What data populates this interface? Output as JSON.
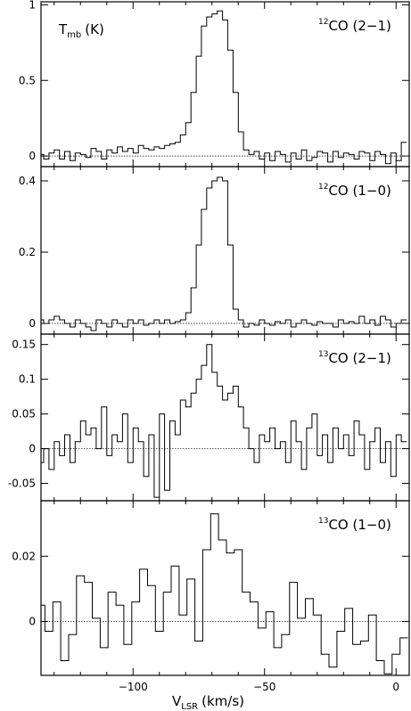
{
  "chart_data": [
    {
      "type": "line",
      "panel": "12CO (2-1)",
      "title_sup": "12",
      "title_main": "CO (2−1)",
      "ylabel_main": "T",
      "ylabel_sub": "mb",
      "ylabel_unit": "(K)",
      "xlim": [
        -135,
        5
      ],
      "ylim": [
        -0.07,
        1.02
      ],
      "yticks": [
        0,
        0.5,
        1
      ],
      "yticklabels": [
        "0",
        "0.5",
        "1"
      ],
      "x": [
        -135,
        -133,
        -131,
        -129,
        -127,
        -125,
        -123,
        -121,
        -119,
        -117,
        -115,
        -113,
        -111,
        -109,
        -107,
        -105,
        -103,
        -101,
        -99,
        -97,
        -95,
        -93,
        -91,
        -89,
        -87,
        -85,
        -83,
        -81,
        -79,
        -77,
        -75,
        -73,
        -71,
        -69,
        -67,
        -65,
        -63,
        -61,
        -59,
        -57,
        -55,
        -53,
        -51,
        -49,
        -47,
        -45,
        -43,
        -41,
        -39,
        -37,
        -35,
        -33,
        -31,
        -29,
        -27,
        -25,
        -23,
        -21,
        -19,
        -17,
        -15,
        -13,
        -11,
        -9,
        -7,
        -5,
        -3,
        -1,
        1,
        3
      ],
      "y": [
        0.01,
        -0.02,
        0.02,
        0.04,
        -0.02,
        0.03,
        -0.03,
        0.02,
        0.01,
        -0.01,
        0.05,
        0.03,
        -0.02,
        0.04,
        0.02,
        0.06,
        0.03,
        0.05,
        0.02,
        0.07,
        0.05,
        0.04,
        0.06,
        0.05,
        0.07,
        0.08,
        0.09,
        0.14,
        0.22,
        0.42,
        0.66,
        0.86,
        0.92,
        0.94,
        0.96,
        0.9,
        0.7,
        0.42,
        0.16,
        0.04,
        0.01,
        0.03,
        -0.02,
        0.02,
        -0.03,
        0.03,
        0.01,
        -0.04,
        0.02,
        -0.02,
        0.04,
        -0.03,
        -0.01,
        0.03,
        0.02,
        -0.04,
        0.03,
        -0.01,
        0.02,
        0.01,
        -0.02,
        0.03,
        0.02,
        -0.03,
        0.03,
        0.01,
        -0.05,
        0.02,
        -0.03,
        0.09
      ]
    },
    {
      "type": "line",
      "panel": "12CO (1-0)",
      "title_sup": "12",
      "title_main": "CO (1−0)",
      "xlim": [
        -135,
        5
      ],
      "ylim": [
        -0.03,
        0.44
      ],
      "yticks": [
        0,
        0.2,
        0.4
      ],
      "yticklabels": [
        "0",
        "0.2",
        "0.4"
      ],
      "x": [
        -135,
        -133,
        -131,
        -129,
        -127,
        -125,
        -123,
        -121,
        -119,
        -117,
        -115,
        -113,
        -111,
        -109,
        -107,
        -105,
        -103,
        -101,
        -99,
        -97,
        -95,
        -93,
        -91,
        -89,
        -87,
        -85,
        -83,
        -81,
        -79,
        -77,
        -75,
        -73,
        -71,
        -69,
        -67,
        -65,
        -63,
        -61,
        -59,
        -57,
        -55,
        -53,
        -51,
        -49,
        -47,
        -45,
        -43,
        -41,
        -39,
        -37,
        -35,
        -33,
        -31,
        -29,
        -27,
        -25,
        -23,
        -21,
        -19,
        -17,
        -15,
        -13,
        -11,
        -9,
        -7,
        -5,
        -3,
        -1,
        1,
        3
      ],
      "y": [
        0.01,
        0.0,
        0.01,
        0.02,
        0.01,
        0.0,
        -0.01,
        0.01,
        0.0,
        -0.01,
        -0.02,
        0.01,
        0.0,
        -0.01,
        0.01,
        0.0,
        -0.01,
        0.01,
        0.0,
        0.01,
        -0.005,
        0.0,
        0.01,
        0.0,
        0.01,
        0.0,
        0.005,
        0.01,
        0.03,
        0.1,
        0.22,
        0.32,
        0.38,
        0.4,
        0.41,
        0.4,
        0.22,
        0.04,
        0.01,
        -0.01,
        0.0,
        -0.005,
        0.01,
        0.0,
        -0.005,
        0.005,
        0.0,
        0.01,
        -0.01,
        0.0,
        0.01,
        0.0,
        -0.005,
        0.005,
        0.0,
        0.0,
        -0.01,
        0.01,
        0.0,
        0.005,
        0.0,
        0.02,
        0.0,
        0.01,
        -0.005,
        0.02,
        0.01,
        -0.01,
        0.0,
        0.01
      ]
    },
    {
      "type": "line",
      "panel": "13CO (2-1)",
      "title_sup": "13",
      "title_main": "CO (2−1)",
      "xlim": [
        -135,
        5
      ],
      "ylim": [
        -0.075,
        0.165
      ],
      "yticks": [
        -0.05,
        0,
        0.05,
        0.1,
        0.15
      ],
      "yticklabels": [
        "-0.05",
        "0",
        "0.05",
        "0.1",
        "0.15"
      ],
      "x": [
        -135,
        -133,
        -131,
        -129,
        -127,
        -125,
        -123,
        -121,
        -119,
        -117,
        -115,
        -113,
        -111,
        -109,
        -107,
        -105,
        -103,
        -101,
        -99,
        -97,
        -95,
        -93,
        -91,
        -89,
        -87,
        -85,
        -83,
        -81,
        -79,
        -77,
        -75,
        -73,
        -71,
        -69,
        -67,
        -65,
        -63,
        -61,
        -59,
        -57,
        -55,
        -53,
        -51,
        -49,
        -47,
        -45,
        -43,
        -41,
        -39,
        -37,
        -35,
        -33,
        -31,
        -29,
        -27,
        -25,
        -23,
        -21,
        -19,
        -17,
        -15,
        -13,
        -11,
        -9,
        -7,
        -5,
        -3,
        -1,
        1,
        3
      ],
      "y": [
        -0.02,
        0.0,
        -0.03,
        0.01,
        -0.01,
        0.02,
        -0.02,
        0.01,
        0.04,
        0.02,
        0.03,
        0.0,
        0.06,
        -0.01,
        0.02,
        0.01,
        0.05,
        -0.02,
        0.03,
        0.01,
        -0.04,
        0.02,
        -0.07,
        0.05,
        -0.06,
        0.04,
        0.02,
        0.07,
        0.06,
        0.08,
        0.1,
        0.12,
        0.15,
        0.11,
        0.09,
        0.07,
        0.08,
        0.09,
        0.06,
        0.03,
        0.0,
        -0.02,
        0.02,
        0.01,
        0.03,
        0.0,
        0.01,
        -0.02,
        0.04,
        0.01,
        -0.03,
        0.03,
        0.05,
        -0.01,
        0.02,
        -0.02,
        0.03,
        0.0,
        0.02,
        -0.01,
        0.04,
        0.02,
        -0.03,
        0.01,
        0.03,
        -0.02,
        0.01,
        -0.04,
        0.02,
        0.01
      ]
    },
    {
      "type": "line",
      "panel": "13CO (1-0)",
      "title_sup": "13",
      "title_main": "CO (1−0)",
      "xlim": [
        -135,
        5
      ],
      "ylim": [
        -0.0165,
        0.037
      ],
      "yticks": [
        0,
        0.02
      ],
      "yticklabels": [
        "0",
        "0.02"
      ],
      "xlabel_main": "V",
      "xlabel_sub": "LSR",
      "xlabel_unit": "(km/s)",
      "xticks": [
        -100,
        -50,
        0
      ],
      "xticklabels": [
        "−100",
        "−50",
        "0"
      ],
      "x": [
        -135,
        -132,
        -129,
        -126,
        -123,
        -120,
        -117,
        -114,
        -111,
        -108,
        -105,
        -102,
        -99,
        -96,
        -93,
        -90,
        -87,
        -84,
        -81,
        -78,
        -75,
        -72,
        -69,
        -66,
        -63,
        -60,
        -57,
        -54,
        -51,
        -48,
        -45,
        -42,
        -39,
        -36,
        -33,
        -30,
        -27,
        -24,
        -21,
        -18,
        -15,
        -12,
        -9,
        -6,
        -3,
        0,
        3
      ],
      "y": [
        0.005,
        -0.003,
        0.006,
        -0.012,
        -0.004,
        0.014,
        0.012,
        0.001,
        -0.008,
        0.009,
        0.005,
        -0.007,
        0.006,
        0.016,
        0.011,
        -0.003,
        0.009,
        0.017,
        0.002,
        0.013,
        -0.006,
        0.022,
        0.033,
        0.025,
        0.021,
        0.022,
        0.009,
        0.006,
        -0.002,
        0.003,
        -0.008,
        -0.004,
        0.012,
        0.001,
        0.007,
        0.002,
        -0.01,
        -0.014,
        -0.003,
        0.004,
        -0.007,
        -0.006,
        0.002,
        -0.012,
        -0.016,
        -0.01,
        -0.005
      ]
    }
  ]
}
